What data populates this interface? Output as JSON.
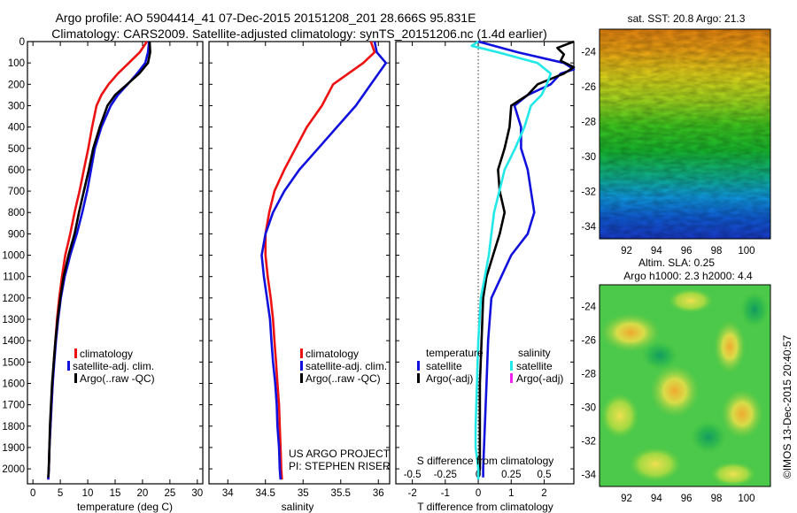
{
  "header": {
    "title_line1": "Argo profile: AO 5904414_41 07-Dec-2015 20151208_201 28.666S 95.831E",
    "title_line2": "Climatology: CARS2009. Satellite-adjusted climatology: synTS_20151206.nc (1.4d earlier)"
  },
  "side_text": "©IMOS 13-Dec-2015 20:40:57",
  "credit": {
    "line1": "US ARGO PROJECT",
    "line2": "PI: STEPHEN RISER"
  },
  "colors": {
    "climatology": "#ee1111",
    "satellite": "#1111dd",
    "argo": "#000000",
    "salinity_satellite": "#22e8e8",
    "salinity_argo": "#ee22ee"
  },
  "chart_data": [
    {
      "id": "temperature",
      "type": "line",
      "xlabel": "temperature (deg C)",
      "ylabel": "",
      "xlim": [
        -1,
        31
      ],
      "xticks": [
        0,
        5,
        10,
        15,
        20,
        25,
        30
      ],
      "ylim": [
        2070,
        0
      ],
      "yticks": [
        0,
        100,
        200,
        300,
        400,
        500,
        600,
        700,
        800,
        900,
        1000,
        1100,
        1200,
        1300,
        1400,
        1500,
        1600,
        1700,
        1800,
        1900,
        2000
      ],
      "legend": {
        "position": "lower-left",
        "entries": [
          "climatology",
          "satellite-adj. clim.",
          "Argo(..raw -QC)"
        ]
      },
      "series": [
        {
          "name": "climatology",
          "color": "#ee1111",
          "points": [
            [
              20.8,
              0
            ],
            [
              19.5,
              50
            ],
            [
              17.5,
              100
            ],
            [
              15.5,
              150
            ],
            [
              13.8,
              200
            ],
            [
              12.5,
              250
            ],
            [
              11.6,
              300
            ],
            [
              10.8,
              400
            ],
            [
              10.1,
              500
            ],
            [
              9.3,
              600
            ],
            [
              8.5,
              700
            ],
            [
              7.6,
              800
            ],
            [
              6.8,
              900
            ],
            [
              5.9,
              1000
            ],
            [
              5.3,
              1100
            ],
            [
              4.8,
              1200
            ],
            [
              4.4,
              1300
            ],
            [
              4.1,
              1400
            ],
            [
              3.8,
              1500
            ],
            [
              3.6,
              1600
            ],
            [
              3.4,
              1700
            ],
            [
              3.2,
              1800
            ],
            [
              3.0,
              1900
            ],
            [
              2.9,
              2000
            ],
            [
              2.8,
              2050
            ]
          ]
        },
        {
          "name": "satellite-adj. clim.",
          "color": "#1111dd",
          "points": [
            [
              21.2,
              0
            ],
            [
              21.0,
              50
            ],
            [
              20.5,
              100
            ],
            [
              19.0,
              150
            ],
            [
              17.3,
              200
            ],
            [
              15.5,
              250
            ],
            [
              14.2,
              300
            ],
            [
              12.5,
              400
            ],
            [
              11.3,
              500
            ],
            [
              10.6,
              600
            ],
            [
              9.9,
              700
            ],
            [
              9.0,
              800
            ],
            [
              8.0,
              900
            ],
            [
              6.8,
              1000
            ],
            [
              5.8,
              1100
            ],
            [
              5.1,
              1200
            ],
            [
              4.6,
              1300
            ],
            [
              4.2,
              1400
            ],
            [
              3.9,
              1500
            ],
            [
              3.6,
              1600
            ],
            [
              3.4,
              1700
            ],
            [
              3.2,
              1800
            ],
            [
              3.0,
              1900
            ],
            [
              2.9,
              2000
            ],
            [
              2.8,
              2050
            ]
          ]
        },
        {
          "name": "Argo(..raw -QC)",
          "color": "#000000",
          "points": [
            [
              21.3,
              0
            ],
            [
              21.4,
              50
            ],
            [
              21.0,
              100
            ],
            [
              19.4,
              150
            ],
            [
              17.2,
              200
            ],
            [
              15.0,
              250
            ],
            [
              13.6,
              300
            ],
            [
              12.2,
              400
            ],
            [
              11.0,
              500
            ],
            [
              10.2,
              600
            ],
            [
              9.3,
              700
            ],
            [
              8.4,
              800
            ],
            [
              7.6,
              900
            ],
            [
              6.5,
              1000
            ],
            [
              5.6,
              1100
            ],
            [
              5.0,
              1200
            ],
            [
              4.5,
              1300
            ],
            [
              4.1,
              1400
            ],
            [
              3.8,
              1500
            ],
            [
              3.5,
              1600
            ],
            [
              3.3,
              1700
            ],
            [
              3.1,
              1800
            ],
            [
              3.0,
              1900
            ],
            [
              2.9,
              2000
            ],
            [
              2.8,
              2040
            ]
          ]
        }
      ]
    },
    {
      "id": "salinity",
      "type": "line",
      "xlabel": "salinity",
      "ylabel": "",
      "xlim": [
        33.75,
        36.15
      ],
      "xticks": [
        34,
        34.5,
        35,
        35.5,
        36
      ],
      "xtick_labels": [
        "34",
        "34.5",
        "35",
        "35.5",
        "36"
      ],
      "ylim": [
        2070,
        0
      ],
      "legend": {
        "position": "lower-left",
        "entries": [
          "climatology",
          "satellite-adj. clim.",
          "Argo(..raw -QC)"
        ]
      },
      "series": [
        {
          "name": "climatology",
          "color": "#ee1111",
          "points": [
            [
              35.9,
              0
            ],
            [
              35.95,
              50
            ],
            [
              35.8,
              100
            ],
            [
              35.6,
              150
            ],
            [
              35.4,
              200
            ],
            [
              35.25,
              300
            ],
            [
              35.05,
              400
            ],
            [
              34.9,
              500
            ],
            [
              34.75,
              600
            ],
            [
              34.62,
              700
            ],
            [
              34.55,
              800
            ],
            [
              34.5,
              900
            ],
            [
              34.5,
              1000
            ],
            [
              34.53,
              1100
            ],
            [
              34.57,
              1200
            ],
            [
              34.6,
              1300
            ],
            [
              34.62,
              1400
            ],
            [
              34.64,
              1500
            ],
            [
              34.66,
              1600
            ],
            [
              34.68,
              1700
            ],
            [
              34.69,
              1800
            ],
            [
              34.7,
              1900
            ],
            [
              34.71,
              2000
            ],
            [
              34.72,
              2050
            ]
          ]
        },
        {
          "name": "satellite-adj. clim.",
          "color": "#1111dd",
          "points": [
            [
              35.95,
              0
            ],
            [
              35.98,
              50
            ],
            [
              36.1,
              100
            ],
            [
              36.0,
              150
            ],
            [
              35.9,
              200
            ],
            [
              35.7,
              300
            ],
            [
              35.45,
              400
            ],
            [
              35.2,
              500
            ],
            [
              34.95,
              600
            ],
            [
              34.75,
              700
            ],
            [
              34.6,
              800
            ],
            [
              34.5,
              900
            ],
            [
              34.45,
              1000
            ],
            [
              34.48,
              1100
            ],
            [
              34.52,
              1200
            ],
            [
              34.56,
              1300
            ],
            [
              34.58,
              1400
            ],
            [
              34.6,
              1500
            ],
            [
              34.63,
              1600
            ],
            [
              34.65,
              1700
            ],
            [
              34.66,
              1800
            ],
            [
              34.68,
              1900
            ],
            [
              34.69,
              2000
            ],
            [
              34.7,
              2050
            ]
          ]
        }
      ]
    },
    {
      "id": "difference",
      "type": "line",
      "xlabel": "T difference from climatology",
      "top_axis_label": "S difference from climatology",
      "xlim": [
        -2.5,
        2.9
      ],
      "xticks": [
        -2,
        -1,
        0,
        1,
        2
      ],
      "top_xticks": [
        -0.5,
        -0.25,
        0,
        0.25,
        0.5
      ],
      "top_xtick_labels": [
        "-0.5",
        "-0.25",
        "0",
        "0.25",
        "0.5"
      ],
      "ylim": [
        2070,
        0
      ],
      "legend": {
        "position": "lower",
        "headers": [
          "temperature",
          "salinity"
        ],
        "entries": [
          "satellite",
          "Argo(-adj)",
          "satellite",
          "Argo(-adj)"
        ]
      },
      "series": [
        {
          "name": "temperature satellite",
          "color": "#1111dd",
          "points": [
            [
              0,
              0
            ],
            [
              1.2,
              50
            ],
            [
              2.6,
              100
            ],
            [
              2.9,
              130
            ],
            [
              2.5,
              150
            ],
            [
              2.2,
              200
            ],
            [
              1.5,
              250
            ],
            [
              1.1,
              300
            ],
            [
              1.3,
              400
            ],
            [
              1.3,
              500
            ],
            [
              1.5,
              600
            ],
            [
              1.6,
              700
            ],
            [
              1.7,
              800
            ],
            [
              1.5,
              900
            ],
            [
              1.0,
              1000
            ],
            [
              0.7,
              1100
            ],
            [
              0.4,
              1200
            ],
            [
              0.3,
              1400
            ],
            [
              0.25,
              1600
            ],
            [
              0.2,
              1800
            ],
            [
              0.15,
              2000
            ],
            [
              0.15,
              2040
            ]
          ]
        },
        {
          "name": "temperature Argo(-adj)",
          "color": "#000000",
          "points": [
            [
              2.9,
              0
            ],
            [
              2.4,
              30
            ],
            [
              2.6,
              60
            ],
            [
              2.5,
              90
            ],
            [
              2.9,
              120
            ],
            [
              2.6,
              150
            ],
            [
              1.8,
              200
            ],
            [
              1.5,
              250
            ],
            [
              1.0,
              300
            ],
            [
              0.95,
              400
            ],
            [
              0.8,
              500
            ],
            [
              0.6,
              600
            ],
            [
              0.65,
              700
            ],
            [
              0.8,
              800
            ],
            [
              0.65,
              900
            ],
            [
              0.45,
              1000
            ],
            [
              0.25,
              1100
            ],
            [
              0.15,
              1200
            ],
            [
              0.1,
              1400
            ],
            [
              0.05,
              1600
            ],
            [
              0.05,
              1800
            ],
            [
              0.05,
              2000
            ],
            [
              0.0,
              2040
            ]
          ]
        },
        {
          "name": "salinity satellite",
          "color": "#22e8e8",
          "points": [
            [
              0,
              0
            ],
            [
              -0.05,
              20
            ],
            [
              0.15,
              50
            ],
            [
              0.45,
              100
            ],
            [
              0.55,
              150
            ],
            [
              0.52,
              200
            ],
            [
              0.48,
              250
            ],
            [
              0.4,
              300
            ],
            [
              0.35,
              400
            ],
            [
              0.28,
              500
            ],
            [
              0.2,
              600
            ],
            [
              0.16,
              700
            ],
            [
              0.12,
              800
            ],
            [
              0.1,
              900
            ],
            [
              0.08,
              1000
            ],
            [
              0.05,
              1100
            ],
            [
              0.02,
              1200
            ],
            [
              0.0,
              1400
            ],
            [
              -0.01,
              1600
            ],
            [
              -0.02,
              1800
            ],
            [
              -0.02,
              1900
            ],
            [
              0.0,
              2000
            ],
            [
              0.0,
              2050
            ]
          ]
        }
      ]
    }
  ],
  "maps": [
    {
      "id": "sst",
      "title": "sat. SST: 20.8  Argo: 21.3",
      "type": "heatmap",
      "xticks": [
        92,
        94,
        96,
        98,
        100
      ],
      "yticks": [
        -24,
        -26,
        -28,
        -30,
        -32,
        -34
      ],
      "xlim": [
        90.2,
        101.6
      ],
      "ylim": [
        -34.7,
        -22.7
      ]
    },
    {
      "id": "sla",
      "title_line1": "Altim. SLA: 0.25",
      "title_line2": "Argo h1000: 2.3  h2000: 4.4",
      "type": "heatmap",
      "xticks": [
        92,
        94,
        96,
        98,
        100
      ],
      "yticks": [
        -24,
        -26,
        -28,
        -30,
        -32,
        -34
      ],
      "xlim": [
        90.2,
        101.6
      ],
      "ylim": [
        -34.7,
        -22.7
      ]
    }
  ]
}
